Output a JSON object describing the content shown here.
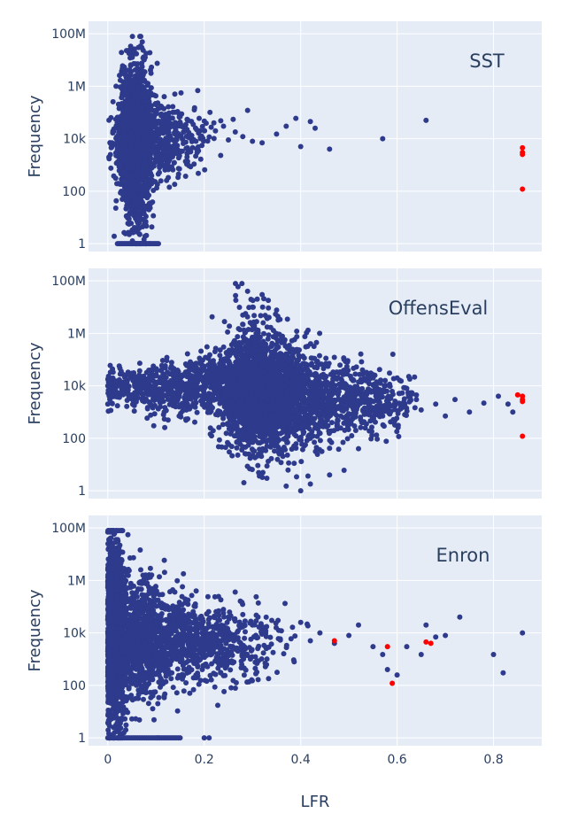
{
  "colors": {
    "plot_bg": "#e5ecf6",
    "grid": "#ffffff",
    "point": "#2e3a8c",
    "highlight": "#ff0000",
    "text": "#2a3f5f"
  },
  "chart_data": {
    "type": "scatter",
    "xlabel": "LFR",
    "ylabel": "Frequency",
    "xlim": [
      -0.04,
      0.9
    ],
    "x_ticks": [
      0,
      0.2,
      0.4,
      0.6,
      0.8
    ],
    "x_tick_labels": [
      "0",
      "0.2",
      "0.4",
      "0.6",
      "0.8"
    ],
    "y_scale": "log",
    "ylim": [
      0.5,
      300000000
    ],
    "y_ticks": [
      1,
      100,
      10000,
      1000000,
      100000000
    ],
    "y_tick_labels": [
      "1",
      "100",
      "10k",
      "1M",
      "100M"
    ],
    "grid": true,
    "panels": [
      {
        "label": "SST",
        "cloud": [
          {
            "x": 0.055,
            "y": 10000,
            "sx": 0.016,
            "sy": 0.55,
            "n": 1600
          },
          {
            "x": 0.065,
            "y": 3000,
            "sx": 0.012,
            "sy": 0.75,
            "n": 500
          },
          {
            "x": 0.11,
            "y": 9000,
            "sx": 0.045,
            "sy": 0.32,
            "n": 500
          }
        ],
        "rows_at_1": [
          {
            "x0": 0.02,
            "x1": 0.105,
            "n": 34
          }
        ],
        "scatter": [
          [
            0.2,
            20000
          ],
          [
            0.22,
            40000
          ],
          [
            0.25,
            9000
          ],
          [
            0.28,
            12000
          ],
          [
            0.3,
            8000
          ],
          [
            0.32,
            7000
          ],
          [
            0.35,
            15000
          ],
          [
            0.37,
            30000
          ],
          [
            0.39,
            60000
          ],
          [
            0.42,
            45000
          ],
          [
            0.4,
            5000
          ],
          [
            0.43,
            25000
          ],
          [
            0.46,
            4000
          ],
          [
            0.57,
            10000
          ],
          [
            0.66,
            50000
          ],
          [
            0.18,
            150000
          ],
          [
            0.15,
            70000
          ],
          [
            0.24,
            30000
          ],
          [
            0.29,
            120000
          ],
          [
            0.26,
            55000
          ]
        ],
        "highlight": [
          [
            0.86,
            4500
          ],
          [
            0.86,
            3000
          ],
          [
            0.86,
            2500
          ],
          [
            0.86,
            120
          ]
        ]
      },
      {
        "label": "OffensEval",
        "cloud": [
          {
            "x": 0.33,
            "y": 4000,
            "sx": 0.05,
            "sy": 0.45,
            "n": 1700
          },
          {
            "x": 0.3,
            "y": 20000,
            "sx": 0.03,
            "sy": 0.6,
            "n": 400
          },
          {
            "x": 0.2,
            "y": 10000,
            "sx": 0.06,
            "sy": 0.25,
            "n": 500
          },
          {
            "x": 0.44,
            "y": 3000,
            "sx": 0.06,
            "sy": 0.3,
            "n": 500
          },
          {
            "x": 0.07,
            "y": 9000,
            "sx": 0.05,
            "sy": 0.15,
            "n": 300
          },
          {
            "x": 0.55,
            "y": 2500,
            "sx": 0.04,
            "sy": 0.25,
            "n": 250
          }
        ],
        "scatter": [
          [
            0.005,
            20000
          ],
          [
            0.0,
            10000
          ],
          [
            0.0,
            2000
          ],
          [
            0.005,
            60000
          ],
          [
            0.02,
            15000
          ],
          [
            0.05,
            30000
          ],
          [
            0.09,
            40000
          ],
          [
            0.27,
            60000000
          ],
          [
            0.29,
            40000000
          ],
          [
            0.31,
            20000000
          ],
          [
            0.32,
            30000000
          ],
          [
            0.3,
            10000000
          ],
          [
            0.28,
            5000000
          ],
          [
            0.33,
            3
          ],
          [
            0.4,
            1
          ],
          [
            0.37,
            1.5
          ],
          [
            0.42,
            1.8
          ],
          [
            0.46,
            4
          ],
          [
            0.49,
            6
          ],
          [
            0.52,
            40
          ],
          [
            0.62,
            8000
          ],
          [
            0.64,
            3000
          ],
          [
            0.65,
            1200
          ],
          [
            0.68,
            2000
          ],
          [
            0.7,
            700
          ],
          [
            0.72,
            3000
          ],
          [
            0.75,
            1000
          ],
          [
            0.78,
            2200
          ],
          [
            0.81,
            4000
          ],
          [
            0.83,
            2000
          ],
          [
            0.84,
            1000
          ],
          [
            0.6,
            20000
          ],
          [
            0.57,
            700
          ]
        ],
        "highlight": [
          [
            0.85,
            4500
          ],
          [
            0.86,
            4000
          ],
          [
            0.86,
            3000
          ],
          [
            0.86,
            2500
          ],
          [
            0.86,
            120
          ]
        ]
      },
      {
        "label": "Enron",
        "cloud": [
          {
            "x": 0.012,
            "y": 10000,
            "sx": 0.012,
            "sy": 0.8,
            "n": 1200
          },
          {
            "x": 0.06,
            "y": 6000,
            "sx": 0.03,
            "sy": 0.5,
            "n": 800
          },
          {
            "x": 0.14,
            "y": 5000,
            "sx": 0.055,
            "sy": 0.35,
            "n": 600
          },
          {
            "x": 0.25,
            "y": 4000,
            "sx": 0.06,
            "sy": 0.3,
            "n": 300
          }
        ],
        "rows_at_1": [
          {
            "x0": 0.0,
            "x1": 0.15,
            "n": 40
          }
        ],
        "scatter": [
          [
            0.0,
            70000000
          ],
          [
            0.005,
            40000000
          ],
          [
            0.01,
            20000000
          ],
          [
            0.02,
            8000000
          ],
          [
            0.03,
            2000000
          ],
          [
            0.2,
            1
          ],
          [
            0.21,
            1
          ],
          [
            0.28,
            50000
          ],
          [
            0.3,
            20000
          ],
          [
            0.32,
            9000
          ],
          [
            0.34,
            30000
          ],
          [
            0.36,
            12000
          ],
          [
            0.38,
            6000
          ],
          [
            0.4,
            25000
          ],
          [
            0.42,
            5000
          ],
          [
            0.44,
            10000
          ],
          [
            0.47,
            4000
          ],
          [
            0.5,
            8000
          ],
          [
            0.52,
            20000
          ],
          [
            0.55,
            3000
          ],
          [
            0.57,
            1500
          ],
          [
            0.58,
            400
          ],
          [
            0.6,
            250
          ],
          [
            0.62,
            3000
          ],
          [
            0.65,
            1500
          ],
          [
            0.66,
            20000
          ],
          [
            0.68,
            7000
          ],
          [
            0.7,
            8000
          ],
          [
            0.73,
            40000
          ],
          [
            0.8,
            1500
          ],
          [
            0.82,
            300
          ],
          [
            0.86,
            10000
          ],
          [
            0.25,
            40000
          ]
        ],
        "highlight": [
          [
            0.47,
            5000
          ],
          [
            0.58,
            3000
          ],
          [
            0.59,
            120
          ],
          [
            0.66,
            4500
          ],
          [
            0.67,
            4000
          ]
        ]
      }
    ]
  }
}
